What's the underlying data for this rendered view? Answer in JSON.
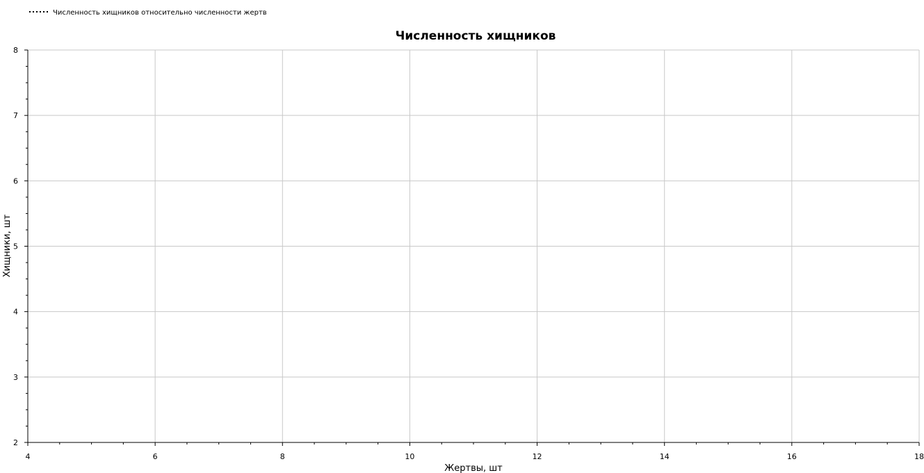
{
  "chart_data": {
    "type": "line",
    "title": "Численность хищников",
    "xlabel": "Жертвы, шт",
    "ylabel": "Хищники, шт",
    "xlim": [
      4,
      18
    ],
    "ylim": [
      2,
      8
    ],
    "x_ticks": [
      4,
      6,
      8,
      10,
      12,
      14,
      16,
      18
    ],
    "y_ticks": [
      2,
      3,
      4,
      5,
      6,
      7,
      8
    ],
    "x_minor_step": 0.5,
    "y_minor_step": 0.25,
    "grid": true,
    "legend_position": "top-left",
    "series": [
      {
        "name": "Численность хищников относительно численности жертв",
        "line_style": "dotted",
        "color": "#000000",
        "x": [],
        "y": []
      }
    ]
  },
  "colors": {
    "grid": "#c8c8c8",
    "axis": "#000000",
    "background": "#ffffff"
  }
}
